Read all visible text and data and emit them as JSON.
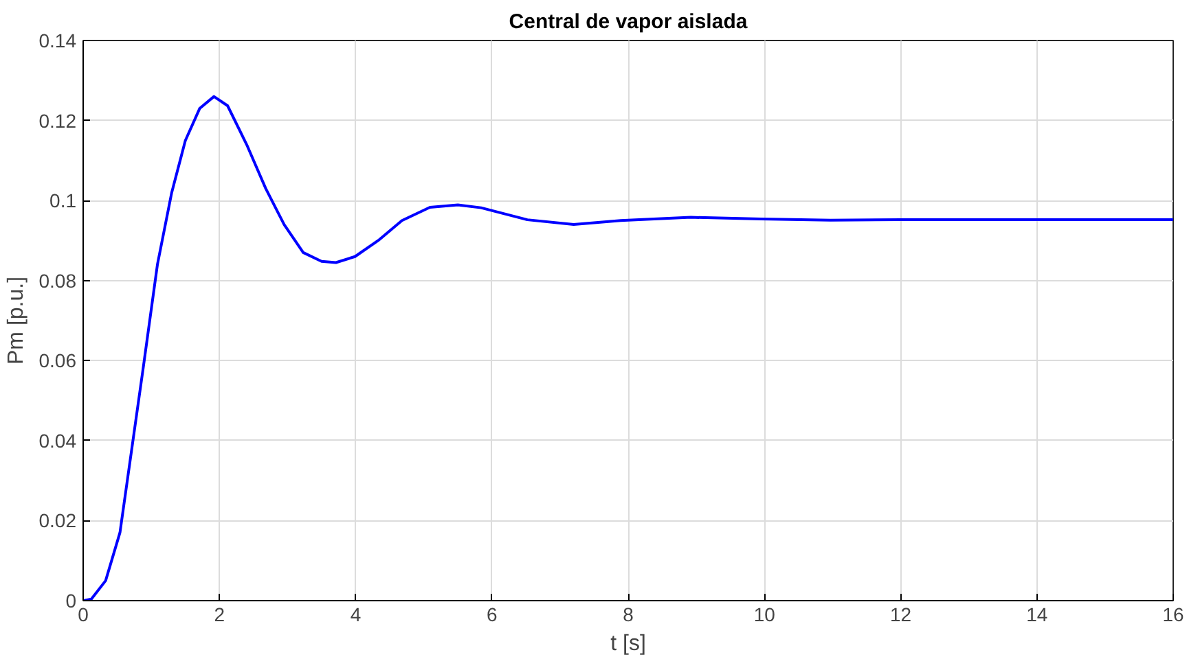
{
  "chart_data": {
    "type": "line",
    "title": "Central de vapor aislada",
    "xlabel": "t [s]",
    "ylabel": "Pm [p.u.]",
    "series": [
      {
        "color": "#0000ff",
        "x": [
          0,
          0.12,
          0.33,
          0.54,
          0.71,
          0.88,
          1.09,
          1.3,
          1.5,
          1.71,
          1.92,
          2.12,
          2.4,
          2.68,
          2.95,
          3.23,
          3.5,
          3.71,
          3.99,
          4.33,
          4.68,
          5.09,
          5.5,
          5.84,
          6.52,
          7.2,
          7.89,
          8.92,
          9.95,
          10.97,
          12,
          13,
          14,
          15,
          16
        ],
        "values": [
          0,
          0.0004,
          0.005,
          0.017,
          0.0375,
          0.058,
          0.084,
          0.102,
          0.115,
          0.123,
          0.126,
          0.1237,
          0.114,
          0.103,
          0.094,
          0.087,
          0.0848,
          0.0845,
          0.086,
          0.09,
          0.095,
          0.0983,
          0.0989,
          0.0982,
          0.0952,
          0.094,
          0.095,
          0.0958,
          0.0954,
          0.0951,
          0.0952,
          0.0952,
          0.0952,
          0.0952,
          0.0952
        ]
      }
    ],
    "xlim": [
      0,
      16
    ],
    "xticks": [
      0,
      2,
      4,
      6,
      8,
      10,
      12,
      14,
      16
    ],
    "ylim": [
      0,
      0.14
    ],
    "yticks": [
      0,
      0.02,
      0.04,
      0.06,
      0.08,
      0.1,
      0.12,
      0.14
    ],
    "grid": true,
    "marker": "none",
    "line_style": "solid"
  }
}
